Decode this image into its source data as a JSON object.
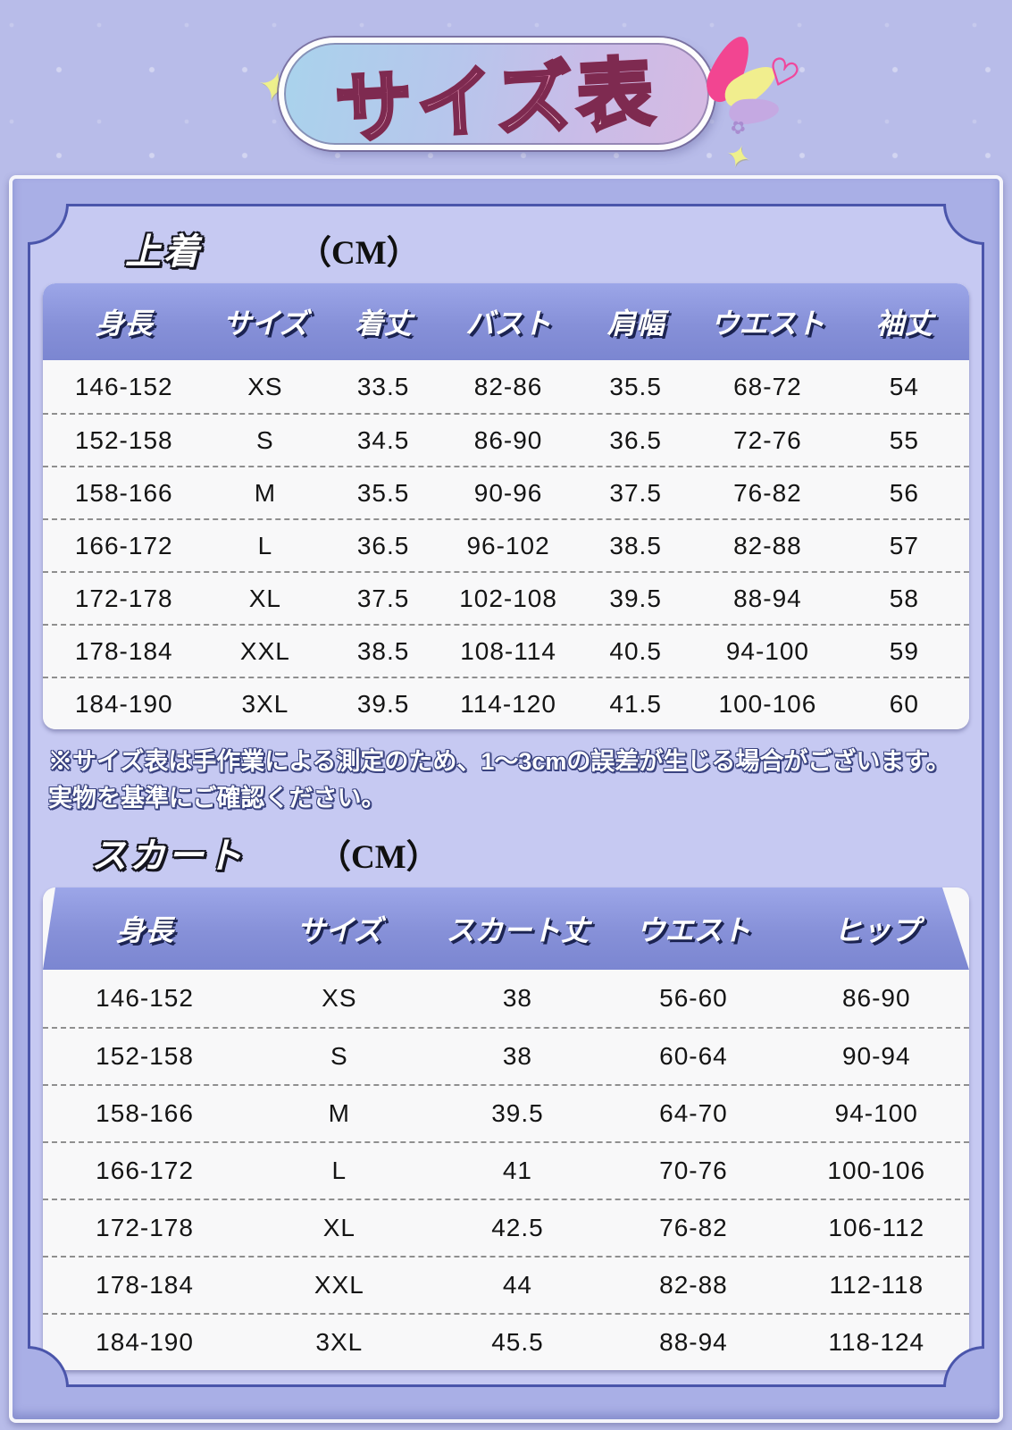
{
  "header": {
    "title": "サイズ表"
  },
  "icons": {
    "sparkle": "✦",
    "heart": "♡",
    "bow": "✿"
  },
  "jacket": {
    "section_title": "上着",
    "unit_label": "（CM）",
    "headers": [
      "身長",
      "サイズ",
      "着丈",
      "バスト",
      "肩幅",
      "ウエスト",
      "袖丈"
    ],
    "rows": [
      [
        "146-152",
        "XS",
        "33.5",
        "82-86",
        "35.5",
        "68-72",
        "54"
      ],
      [
        "152-158",
        "S",
        "34.5",
        "86-90",
        "36.5",
        "72-76",
        "55"
      ],
      [
        "158-166",
        "M",
        "35.5",
        "90-96",
        "37.5",
        "76-82",
        "56"
      ],
      [
        "166-172",
        "L",
        "36.5",
        "96-102",
        "38.5",
        "82-88",
        "57"
      ],
      [
        "172-178",
        "XL",
        "37.5",
        "102-108",
        "39.5",
        "88-94",
        "58"
      ],
      [
        "178-184",
        "XXL",
        "38.5",
        "108-114",
        "40.5",
        "94-100",
        "59"
      ],
      [
        "184-190",
        "3XL",
        "39.5",
        "114-120",
        "41.5",
        "100-106",
        "60"
      ]
    ]
  },
  "note": "※サイズ表は手作業による測定のため、1〜3cmの誤差が生じる場合がございます。実物を基準にご確認ください。",
  "skirt": {
    "section_title": "スカート",
    "unit_label": "（CM）",
    "headers": [
      "身長",
      "サイズ",
      "スカート丈",
      "ウエスト",
      "ヒップ"
    ],
    "rows": [
      [
        "146-152",
        "XS",
        "38",
        "56-60",
        "86-90"
      ],
      [
        "152-158",
        "S",
        "38",
        "60-64",
        "90-94"
      ],
      [
        "158-166",
        "M",
        "39.5",
        "64-70",
        "94-100"
      ],
      [
        "166-172",
        "L",
        "41",
        "70-76",
        "100-106"
      ],
      [
        "172-178",
        "XL",
        "42.5",
        "76-82",
        "106-112"
      ],
      [
        "178-184",
        "XXL",
        "44",
        "82-88",
        "112-118"
      ],
      [
        "184-190",
        "3XL",
        "45.5",
        "88-94",
        "118-124"
      ]
    ]
  },
  "colors": {
    "background": "#b8bce9",
    "frame_band": "#a9afe6",
    "frame_line": "#4a55ab",
    "frame_fill": "#c6c9f2",
    "table_header_band": "#8690d8",
    "panel": "#f8f8f9",
    "title_pink": "#f286b0",
    "title_outline": "#7e2a50",
    "confetti_pink": "#f24591",
    "confetti_yellow": "#f1ee8e",
    "confetti_purple": "#c5a9e2"
  }
}
